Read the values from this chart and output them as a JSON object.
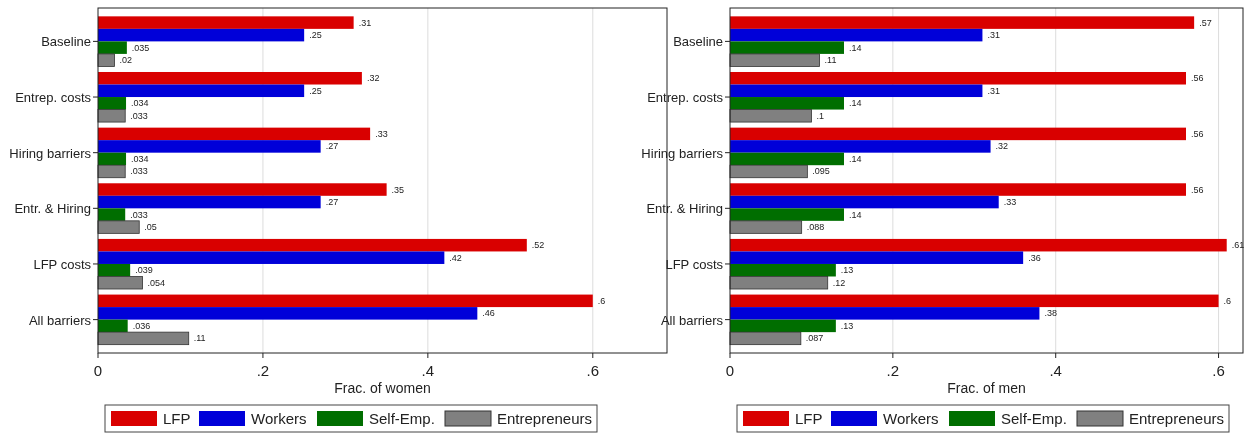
{
  "chart_data": [
    {
      "type": "bar",
      "orientation": "horizontal",
      "xlabel": "Frac. of women",
      "categories": [
        "Baseline",
        "Entrep. costs",
        "Hiring barriers",
        "Entr. & Hiring",
        "LFP costs",
        "All barriers"
      ],
      "xlim": [
        0,
        0.69
      ],
      "xticks": [
        0,
        {
          "value": 0.2,
          "label": ".2"
        },
        {
          "value": 0.4,
          "label": ".4"
        },
        {
          "value": 0.6,
          "label": ".6"
        }
      ],
      "grid": "x",
      "legend": "bottom",
      "series": [
        {
          "name": "LFP",
          "color": "#d90000",
          "values": [
            0.31,
            0.32,
            0.33,
            0.35,
            0.52,
            0.6
          ],
          "value_labels": [
            ".31",
            ".32",
            ".33",
            ".35",
            ".52",
            ".6"
          ]
        },
        {
          "name": "Workers",
          "color": "#0000d9",
          "values": [
            0.25,
            0.25,
            0.27,
            0.27,
            0.42,
            0.46
          ],
          "value_labels": [
            ".25",
            ".25",
            ".27",
            ".27",
            ".42",
            ".46"
          ]
        },
        {
          "name": "Self-Emp.",
          "color": "#006e00",
          "values": [
            0.035,
            0.034,
            0.034,
            0.033,
            0.039,
            0.036
          ],
          "value_labels": [
            ".035",
            ".034",
            ".034",
            ".033",
            ".039",
            ".036"
          ]
        },
        {
          "name": "Entrepreneurs",
          "color": "#808080",
          "values": [
            0.02,
            0.033,
            0.033,
            0.05,
            0.054,
            0.11
          ],
          "value_labels": [
            ".02",
            ".033",
            ".033",
            ".05",
            ".054",
            ".11"
          ]
        }
      ]
    },
    {
      "type": "bar",
      "orientation": "horizontal",
      "xlabel": "Frac. of men",
      "categories": [
        "Baseline",
        "Entrep. costs",
        "Hiring barriers",
        "Entr. & Hiring",
        "LFP costs",
        "All barriers"
      ],
      "xlim": [
        0,
        0.63
      ],
      "xticks": [
        0,
        {
          "value": 0.2,
          "label": ".2"
        },
        {
          "value": 0.4,
          "label": ".4"
        },
        {
          "value": 0.6,
          "label": ".6"
        }
      ],
      "grid": "x",
      "legend": "bottom",
      "series": [
        {
          "name": "LFP",
          "color": "#d90000",
          "values": [
            0.57,
            0.56,
            0.56,
            0.56,
            0.61,
            0.6
          ],
          "value_labels": [
            ".57",
            ".56",
            ".56",
            ".56",
            ".61",
            ".6"
          ]
        },
        {
          "name": "Workers",
          "color": "#0000d9",
          "values": [
            0.31,
            0.31,
            0.32,
            0.33,
            0.36,
            0.38
          ],
          "value_labels": [
            ".31",
            ".31",
            ".32",
            ".33",
            ".36",
            ".38"
          ]
        },
        {
          "name": "Self-Emp.",
          "color": "#006e00",
          "values": [
            0.14,
            0.14,
            0.14,
            0.14,
            0.13,
            0.13
          ],
          "value_labels": [
            ".14",
            ".14",
            ".14",
            ".14",
            ".13",
            ".13"
          ]
        },
        {
          "name": "Entrepreneurs",
          "color": "#808080",
          "values": [
            0.11,
            0.1,
            0.095,
            0.088,
            0.12,
            0.087
          ],
          "value_labels": [
            ".11",
            ".1",
            ".095",
            ".088",
            ".12",
            ".087"
          ]
        }
      ]
    }
  ]
}
